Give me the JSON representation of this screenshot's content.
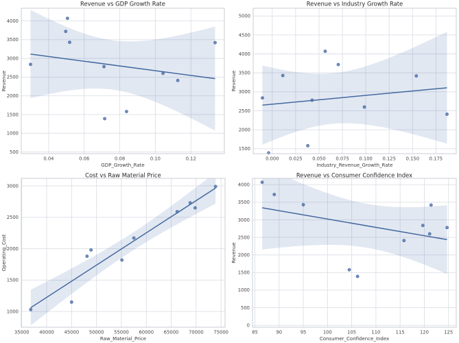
{
  "figure_title": "",
  "style": {
    "point_color": "#4c72b0",
    "point_edge_color": "#3b5a8f",
    "line_color": "#44699f",
    "band_color": "rgba(76,114,176,0.16)",
    "grid_color": "#dcdfe6",
    "spine_color": "#c9ccd4",
    "background": "#ffffff"
  },
  "chart_data": [
    {
      "type": "scatter",
      "title": "Revenue vs GDP Growth Rate",
      "xlabel": "GDP_Growth_Rate",
      "ylabel": "Revenue",
      "regression_line": true,
      "confidence_band": "95%",
      "grid": true,
      "legend": "none",
      "xlim": [
        0.0246,
        0.1388
      ],
      "ylim": [
        455,
        4340
      ],
      "xticks": {
        "values": [
          0.04,
          0.06,
          0.08,
          0.1,
          0.12
        ],
        "labels": [
          "0.04",
          "0.06",
          "0.08",
          "0.10",
          "0.12"
        ]
      },
      "yticks": {
        "values": [
          500,
          1000,
          1500,
          2000,
          2500,
          3000,
          3500,
          4000
        ],
        "labels": [
          "500",
          "1000",
          "1500",
          "2000",
          "2500",
          "3000",
          "3500",
          "4000"
        ]
      },
      "points": [
        [
          0.0298,
          2840
        ],
        [
          0.0506,
          4070
        ],
        [
          0.0496,
          3720
        ],
        [
          0.0518,
          3430
        ],
        [
          0.0711,
          2780
        ],
        [
          0.0715,
          1390
        ],
        [
          0.0838,
          1580
        ],
        [
          0.1043,
          2600
        ],
        [
          0.1126,
          2410
        ],
        [
          0.1336,
          3420
        ]
      ]
    },
    {
      "type": "scatter",
      "title": "Revenue vs Industry Growth Rate",
      "xlabel": "Industry_Revenue_Growth_Rate",
      "ylabel": "Revenue",
      "regression_line": true,
      "confidence_band": "95%",
      "grid": true,
      "legend": "none",
      "xlim": [
        -0.0204,
        0.1967
      ],
      "ylim": [
        1370,
        5205
      ],
      "xticks": {
        "values": [
          0.0,
          0.025,
          0.05,
          0.075,
          0.1,
          0.125,
          0.15,
          0.175
        ],
        "labels": [
          "0.000",
          "0.025",
          "0.050",
          "0.075",
          "0.100",
          "0.125",
          "0.150",
          "0.175"
        ]
      },
      "yticks": {
        "values": [
          1500,
          2000,
          2500,
          3000,
          3500,
          4000,
          4500,
          5000
        ],
        "labels": [
          "1500",
          "2000",
          "2500",
          "3000",
          "3500",
          "4000",
          "4500",
          "5000"
        ]
      },
      "points": [
        [
          -0.0105,
          2840
        ],
        [
          0.0566,
          4070
        ],
        [
          0.0706,
          3720
        ],
        [
          0.0113,
          3430
        ],
        [
          0.0426,
          2780
        ],
        [
          -0.0039,
          1390
        ],
        [
          0.038,
          1580
        ],
        [
          0.0985,
          2600
        ],
        [
          0.1868,
          2410
        ],
        [
          0.154,
          3420
        ]
      ]
    },
    {
      "type": "scatter",
      "title": "Cost vs Raw Material Price",
      "xlabel": "Raw_Material_Price",
      "ylabel": "Operating_Cost",
      "regression_line": true,
      "confidence_band": "95%",
      "grid": true,
      "legend": "none",
      "xlim": [
        34900,
        75800
      ],
      "ylim": [
        750,
        3120
      ],
      "xticks": {
        "values": [
          35000,
          40000,
          45000,
          50000,
          55000,
          60000,
          65000,
          70000,
          75000
        ],
        "labels": [
          "35000",
          "40000",
          "45000",
          "50000",
          "55000",
          "60000",
          "65000",
          "70000",
          "75000"
        ]
      },
      "yticks": {
        "values": [
          1000,
          1500,
          2000,
          2500,
          3000
        ],
        "labels": [
          "1000",
          "1500",
          "2000",
          "2500",
          "3000"
        ]
      },
      "points": [
        [
          36800,
          1030
        ],
        [
          45000,
          1150
        ],
        [
          48100,
          1880
        ],
        [
          48900,
          1980
        ],
        [
          55100,
          1820
        ],
        [
          57500,
          2170
        ],
        [
          66200,
          2590
        ],
        [
          68800,
          2730
        ],
        [
          69800,
          2650
        ],
        [
          73900,
          2990
        ]
      ]
    },
    {
      "type": "scatter",
      "title": "Revenue vs Consumer Confidence Index",
      "xlabel": "Consumer_Confidence_Index",
      "ylabel": "Revenue",
      "regression_line": true,
      "confidence_band": "95%",
      "grid": true,
      "legend": "none",
      "xlim": [
        84.5,
        126.6
      ],
      "ylim": [
        -55,
        4180
      ],
      "xticks": {
        "values": [
          85,
          90,
          95,
          100,
          105,
          110,
          115,
          120,
          125
        ],
        "labels": [
          "85",
          "90",
          "95",
          "100",
          "105",
          "110",
          "115",
          "120",
          "125"
        ]
      },
      "yticks": {
        "values": [
          0,
          500,
          1000,
          1500,
          2000,
          2500,
          3000,
          3500,
          4000
        ],
        "labels": [
          "0",
          "500",
          "1000",
          "1500",
          "2000",
          "2500",
          "3000",
          "3500",
          "4000"
        ]
      },
      "points": [
        [
          119.7,
          2840
        ],
        [
          86.5,
          4070
        ],
        [
          89.0,
          3720
        ],
        [
          95.0,
          3430
        ],
        [
          124.7,
          2780
        ],
        [
          106.2,
          1390
        ],
        [
          104.5,
          1580
        ],
        [
          121.1,
          2600
        ],
        [
          115.8,
          2410
        ],
        [
          121.4,
          3420
        ]
      ]
    }
  ]
}
